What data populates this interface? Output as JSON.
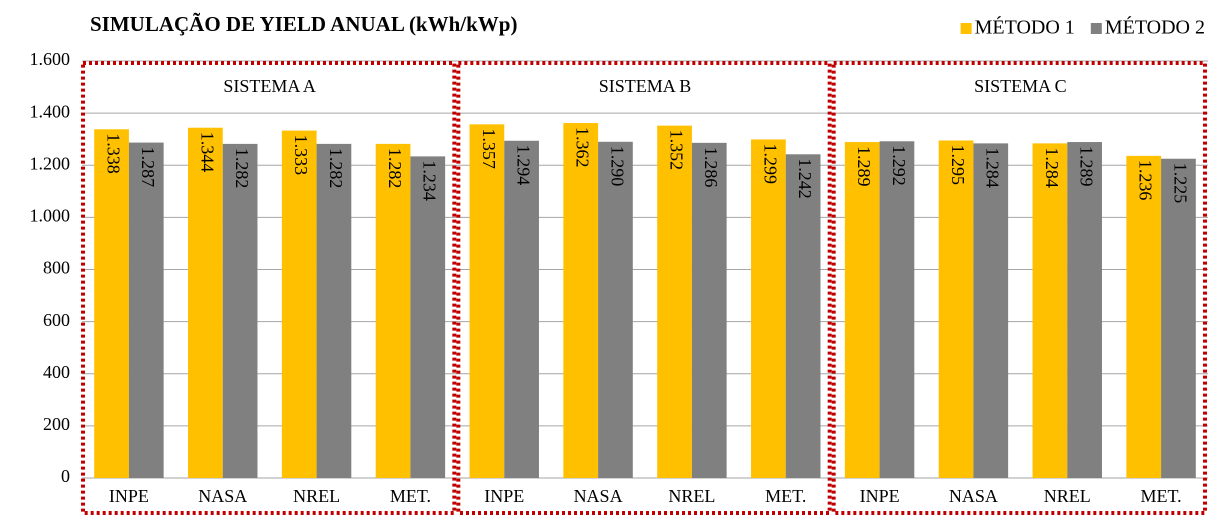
{
  "chart_data": {
    "type": "bar",
    "title": "SIMULAÇÃO DE YIELD ANUAL (kWh/kWp)",
    "categories": [
      "INPE",
      "NASA",
      "NREL",
      "MET.",
      "INPE",
      "NASA",
      "NREL",
      "MET.",
      "INPE",
      "NASA",
      "NREL",
      "MET."
    ],
    "groups": [
      "SISTEMA A",
      "SISTEMA B",
      "SISTEMA C"
    ],
    "series": [
      {
        "name": "MÉTODO 1",
        "color": "#ffc000",
        "values": [
          1338,
          1344,
          1333,
          1282,
          1357,
          1362,
          1352,
          1299,
          1289,
          1295,
          1284,
          1236
        ],
        "value_labels": [
          "1.338",
          "1.344",
          "1.333",
          "1.282",
          "1.357",
          "1.362",
          "1.352",
          "1.299",
          "1.289",
          "1.295",
          "1.284",
          "1.236"
        ]
      },
      {
        "name": "MÉTODO 2",
        "color": "#808080",
        "values": [
          1287,
          1282,
          1282,
          1234,
          1294,
          1290,
          1286,
          1242,
          1292,
          1284,
          1289,
          1225
        ],
        "value_labels": [
          "1.287",
          "1.282",
          "1.282",
          "1.234",
          "1.294",
          "1.290",
          "1.286",
          "1.242",
          "1.292",
          "1.284",
          "1.289",
          "1.225"
        ]
      }
    ],
    "ylim": [
      0,
      1600
    ],
    "yticks": [
      0,
      200,
      400,
      600,
      800,
      {
        "value": 1000,
        "label": "1.000"
      },
      {
        "value": 1200,
        "label": "1.200"
      },
      {
        "value": 1400,
        "label": "1.400"
      },
      {
        "value": 1600,
        "label": "1.600"
      }
    ],
    "grid": true,
    "legend": "top-right"
  }
}
